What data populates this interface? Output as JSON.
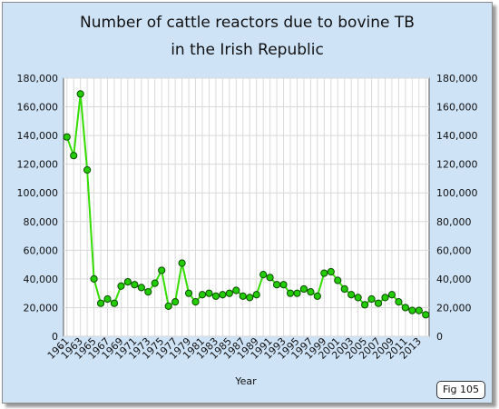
{
  "title_line1": "Number of cattle reactors due to bovine TB",
  "title_line2": "in the Irish Republic",
  "fig_label": "Fig 105",
  "colors": {
    "frame_bg": "#cfe3f7",
    "plot_bg": "#ffffff",
    "grid": "#d9d9d9",
    "line": "#33dd00",
    "marker_fill": "#22cc00",
    "marker_edge": "#0a4a00"
  },
  "chart_data": {
    "type": "line",
    "title": "Number of cattle reactors due to bovine TB in the Irish Republic",
    "xlabel": "Year",
    "ylabel": "",
    "x_tick_labels": [
      "1961",
      "1963",
      "1965",
      "1967",
      "1969",
      "1971",
      "1973",
      "1975",
      "1977",
      "1979",
      "1981",
      "1983",
      "1985",
      "1987",
      "1989",
      "1991",
      "1993",
      "1995",
      "1997",
      "1999",
      "2001",
      "2003",
      "2005",
      "2007",
      "2009",
      "2011",
      "2013"
    ],
    "x_leading_tick_label": "-",
    "y_tick_labels": [
      "0",
      "20,000",
      "40,000",
      "60,000",
      "80,000",
      "100,000",
      "120,000",
      "140,000",
      "160,000",
      "180,000"
    ],
    "ylim": [
      0,
      180000
    ],
    "xlim": [
      1960.5,
      2014.5
    ],
    "grid": true,
    "legend": "none",
    "series": [
      {
        "x": [
          1961,
          1962,
          1963,
          1964,
          1965,
          1966,
          1967,
          1968,
          1969,
          1970,
          1971,
          1972,
          1973,
          1974,
          1975,
          1976,
          1977,
          1978,
          1979,
          1980,
          1981,
          1982,
          1983,
          1984,
          1985,
          1986,
          1987,
          1988,
          1989,
          1990,
          1991,
          1992,
          1993,
          1994,
          1995,
          1996,
          1997,
          1998,
          1999,
          2000,
          2001,
          2002,
          2003,
          2004,
          2005,
          2006,
          2007,
          2008,
          2009,
          2010,
          2011,
          2012,
          2013,
          2014
        ],
        "values": [
          139000,
          126000,
          169000,
          116000,
          40000,
          23000,
          26000,
          23000,
          35000,
          38000,
          36000,
          34000,
          31000,
          37000,
          46000,
          21000,
          24000,
          51000,
          30000,
          24000,
          29000,
          30000,
          28000,
          29000,
          30000,
          32000,
          28000,
          27000,
          29000,
          43000,
          41000,
          36000,
          36000,
          30000,
          30000,
          33000,
          31000,
          28000,
          44000,
          45000,
          39000,
          33000,
          29000,
          27000,
          22000,
          26000,
          23000,
          27000,
          29000,
          24000,
          20000,
          18000,
          18000,
          15000
        ]
      }
    ]
  }
}
